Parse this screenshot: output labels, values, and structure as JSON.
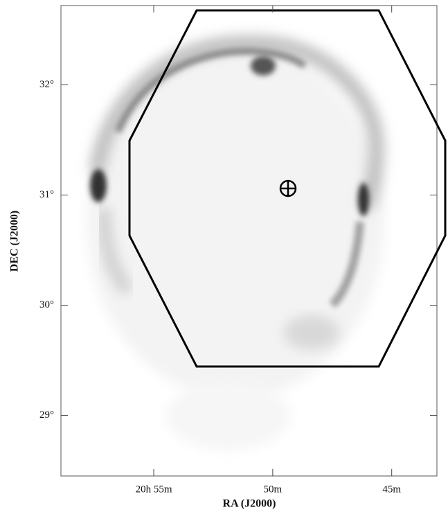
{
  "chart_data": {
    "type": "image",
    "xlabel": "RA (J2000)",
    "ylabel": "DEC (J2000)",
    "xlim": [
      1258.9,
      1243.1
    ],
    "xticks": [
      {
        "value": 1255,
        "label": "20h 55m"
      },
      {
        "value": 1250,
        "label": "50m"
      },
      {
        "value": 1245,
        "label": "45m"
      }
    ],
    "ylim": [
      28.45,
      32.72
    ],
    "yticks": [
      {
        "value": 29,
        "label": "29°"
      },
      {
        "value": 30,
        "label": "30°"
      },
      {
        "value": 31,
        "label": "31°"
      },
      {
        "value": 32,
        "label": "32°"
      }
    ]
  }
}
